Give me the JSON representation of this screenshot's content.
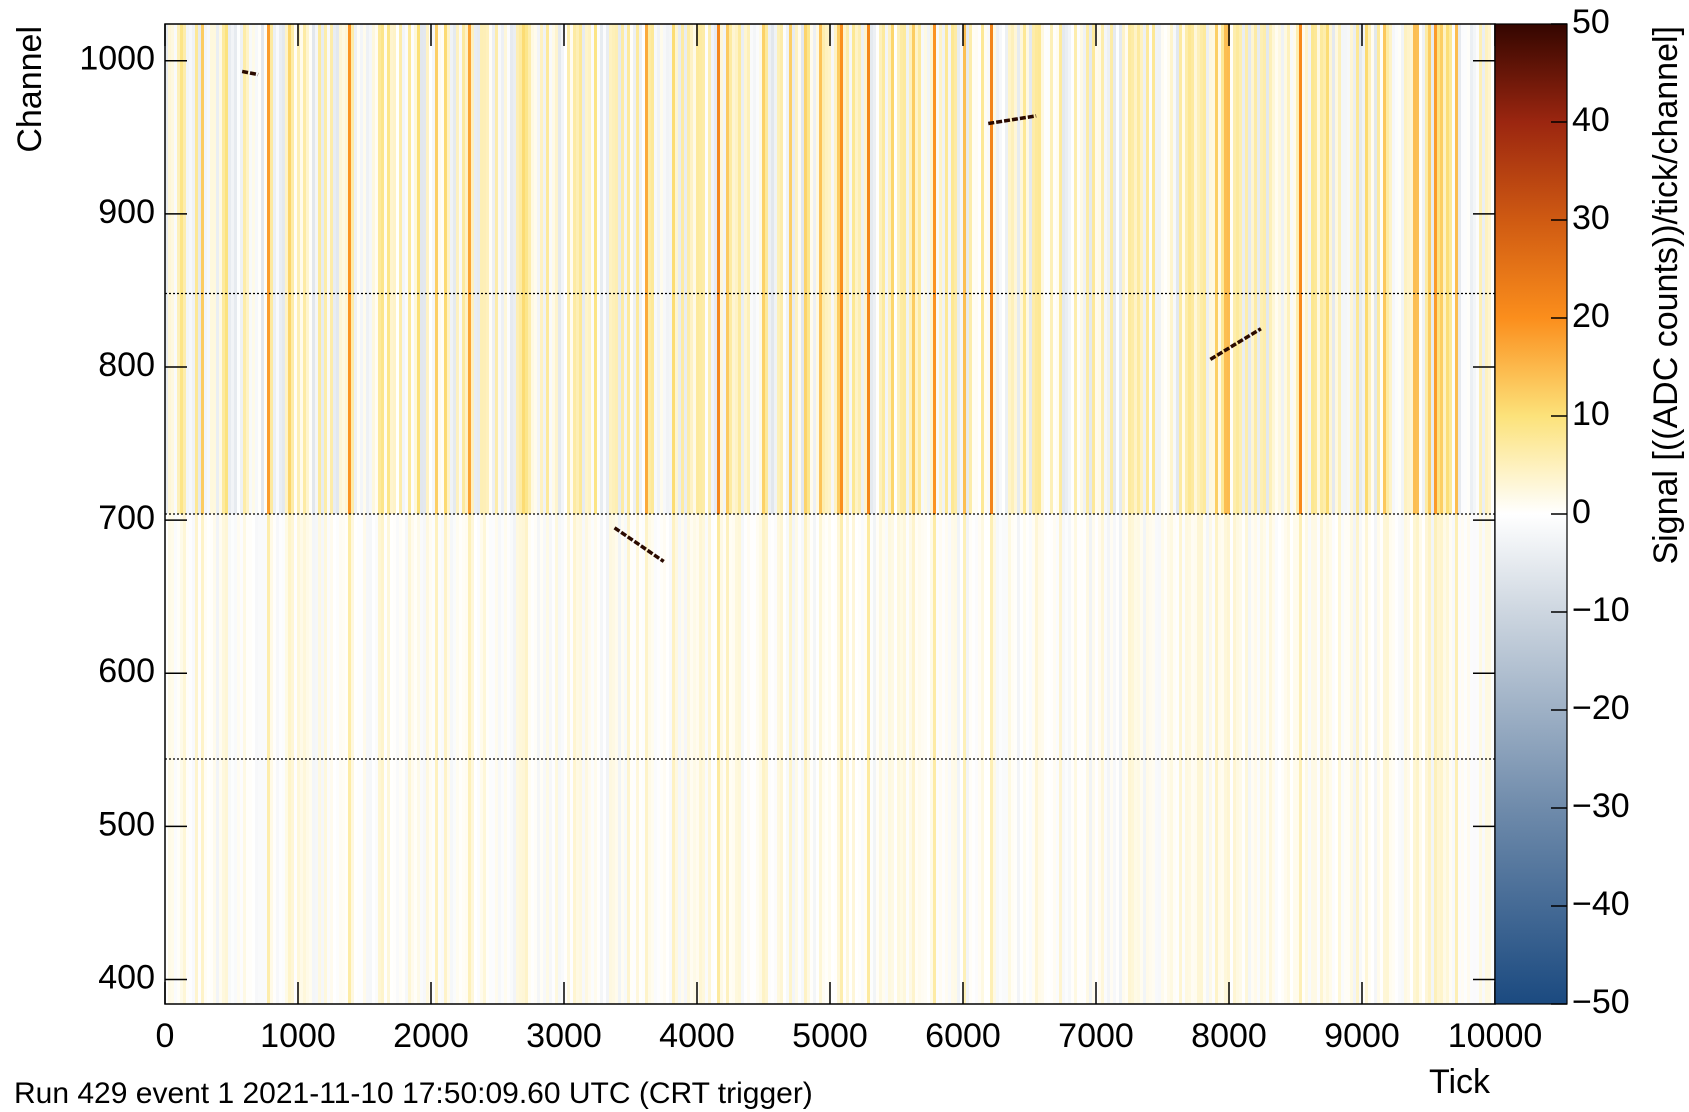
{
  "chart_data": {
    "type": "heatmap",
    "x_label": "Tick",
    "y_label": "Channel",
    "footer": "Run 429 event 1 2021-11-10 17:50:09.60 UTC (CRT trigger)",
    "colorbar_label": "Signal [((ADC counts))/tick/channel]",
    "xlim": [
      0,
      10000
    ],
    "xticks": [
      0,
      1000,
      2000,
      3000,
      4000,
      5000,
      6000,
      7000,
      8000,
      9000,
      10000
    ],
    "ylim": [
      384,
      1024
    ],
    "yticks": [
      400,
      500,
      600,
      700,
      800,
      900,
      1000
    ],
    "zlim": [
      -50,
      50
    ],
    "zticks": [
      {
        "value": -50,
        "label": "−50"
      },
      {
        "value": -40,
        "label": "−40"
      },
      {
        "value": -30,
        "label": "−30"
      },
      {
        "value": -20,
        "label": "−20"
      },
      {
        "value": -10,
        "label": "−10"
      },
      0,
      10,
      20,
      30,
      40,
      50
    ],
    "colormap": [
      {
        "value": -50,
        "color": "#1b4a80"
      },
      {
        "value": -30,
        "color": "#6f8bab"
      },
      {
        "value": -10,
        "color": "#cdd6e0"
      },
      {
        "value": 0,
        "color": "#ffffff"
      },
      {
        "value": 10,
        "color": "#fce27a"
      },
      {
        "value": 20,
        "color": "#fb8e1c"
      },
      {
        "value": 30,
        "color": "#cf5a12"
      },
      {
        "value": 40,
        "color": "#9b2610"
      },
      {
        "value": 50,
        "color": "#340600"
      }
    ],
    "boundaries": [
      544,
      704,
      848
    ],
    "tracks": [
      {
        "x": [
          580,
          700
        ],
        "y": [
          993,
          991
        ]
      },
      {
        "x": [
          6190,
          6550
        ],
        "y": [
          959,
          964
        ]
      },
      {
        "x": [
          7860,
          8240
        ],
        "y": [
          805,
          825
        ]
      },
      {
        "x": [
          3380,
          3750
        ],
        "y": [
          695,
          673
        ]
      }
    ],
    "track_color": "#2a0a00"
  }
}
